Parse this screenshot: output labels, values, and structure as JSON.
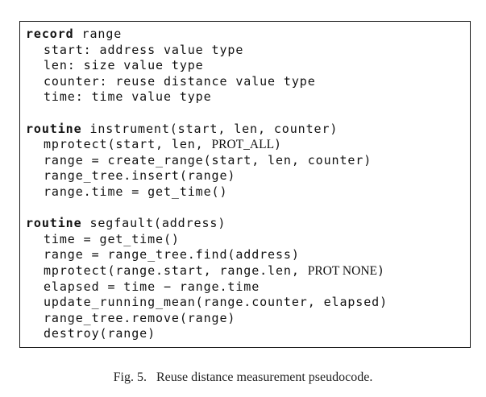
{
  "listing": {
    "record": {
      "keyword": "record",
      "name": " range",
      "fields": [
        "start: address value type",
        "len: size value type",
        "counter: reuse distance value type",
        "time: time value type"
      ]
    },
    "instrument": {
      "keyword": "routine",
      "signature": " instrument(start, len, counter)",
      "mprotect_call": "mprotect(start, len, ",
      "mprotect_flag": "PROT_ALL",
      "mprotect_close": ")",
      "body": [
        "range = create_range(start, len, counter)",
        "range_tree.insert(range)",
        "range.time = get_time()"
      ]
    },
    "segfault": {
      "keyword": "routine",
      "signature": " segfault(address)",
      "body_before": [
        "time = get_time()",
        "range = range_tree.find(address)"
      ],
      "mprotect_call": "mprotect(range.start, range.len, ",
      "mprotect_flag": "PROT NONE",
      "mprotect_close": ")",
      "body_after": [
        "elapsed = time − range.time",
        "update_running_mean(range.counter, elapsed)",
        "range_tree.remove(range)",
        "destroy(range)"
      ]
    }
  },
  "caption": "Fig. 5.   Reuse distance measurement pseudocode."
}
